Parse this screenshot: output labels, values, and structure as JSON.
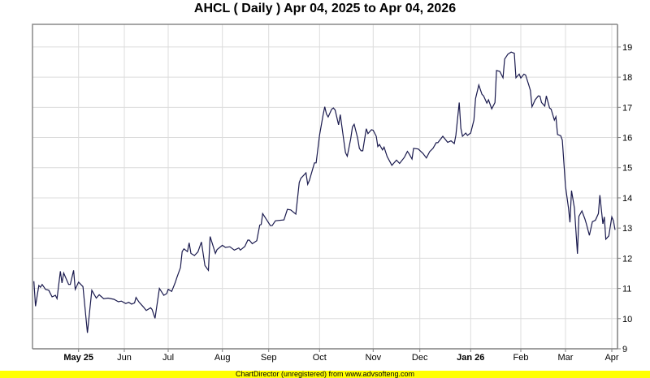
{
  "chart_data": {
    "type": "line",
    "title": "AHCL ( Daily ) Apr 04, 2025 to Apr 04, 2026",
    "xlabel": "",
    "ylabel": "",
    "ylim": [
      9,
      19.75
    ],
    "yticks": [
      9,
      10,
      11,
      12,
      13,
      14,
      15,
      16,
      17,
      18,
      19
    ],
    "y_axis_side": "right",
    "grid": true,
    "line_color": "#1a1a4e",
    "xticks": [
      {
        "date": "2025-05-01",
        "label": "May 25",
        "bold": true
      },
      {
        "date": "2025-06-01",
        "label": "Jun",
        "bold": false
      },
      {
        "date": "2025-07-01",
        "label": "Jul",
        "bold": false
      },
      {
        "date": "2025-08-01",
        "label": "Aug",
        "bold": false
      },
      {
        "date": "2025-09-01",
        "label": "Sep",
        "bold": false
      },
      {
        "date": "2025-10-01",
        "label": "Oct",
        "bold": false
      },
      {
        "date": "2025-11-01",
        "label": "Nov",
        "bold": false
      },
      {
        "date": "2025-12-01",
        "label": "Dec",
        "bold": false
      },
      {
        "date": "2026-01-01",
        "label": "Jan 26",
        "bold": true
      },
      {
        "date": "2026-02-01",
        "label": "Feb",
        "bold": false
      },
      {
        "date": "2026-03-01",
        "label": "Mar",
        "bold": false
      },
      {
        "date": "2026-04-01",
        "label": "Apr",
        "bold": false
      }
    ],
    "points": [
      [
        "2025-04-04",
        11.24
      ],
      [
        "2025-04-05",
        10.41
      ],
      [
        "2025-04-07",
        11.1
      ],
      [
        "2025-04-08",
        11.04
      ],
      [
        "2025-04-09",
        11.13
      ],
      [
        "2025-04-11",
        10.97
      ],
      [
        "2025-04-13",
        10.94
      ],
      [
        "2025-04-15",
        10.72
      ],
      [
        "2025-04-17",
        10.77
      ],
      [
        "2025-04-18",
        10.66
      ],
      [
        "2025-04-20",
        11.57
      ],
      [
        "2025-04-21",
        11.18
      ],
      [
        "2025-04-22",
        11.51
      ],
      [
        "2025-04-25",
        11.13
      ],
      [
        "2025-04-26",
        11.13
      ],
      [
        "2025-04-28",
        11.6
      ],
      [
        "2025-04-29",
        10.97
      ],
      [
        "2025-05-01",
        11.21
      ],
      [
        "2025-05-04",
        11.06
      ],
      [
        "2025-05-07",
        9.53
      ],
      [
        "2025-05-10",
        10.94
      ],
      [
        "2025-05-13",
        10.68
      ],
      [
        "2025-05-15",
        10.79
      ],
      [
        "2025-05-18",
        10.66
      ],
      [
        "2025-05-21",
        10.68
      ],
      [
        "2025-05-25",
        10.64
      ],
      [
        "2025-05-28",
        10.56
      ],
      [
        "2025-05-30",
        10.58
      ],
      [
        "2025-06-02",
        10.5
      ],
      [
        "2025-06-04",
        10.54
      ],
      [
        "2025-06-06",
        10.48
      ],
      [
        "2025-06-08",
        10.52
      ],
      [
        "2025-06-09",
        10.7
      ],
      [
        "2025-06-11",
        10.55
      ],
      [
        "2025-06-14",
        10.39
      ],
      [
        "2025-06-16",
        10.27
      ],
      [
        "2025-06-19",
        10.36
      ],
      [
        "2025-06-20",
        10.3
      ],
      [
        "2025-06-22",
        10.01
      ],
      [
        "2025-06-25",
        11.0
      ],
      [
        "2025-06-28",
        10.77
      ],
      [
        "2025-06-30",
        10.83
      ],
      [
        "2025-07-01",
        10.97
      ],
      [
        "2025-07-03",
        10.9
      ],
      [
        "2025-07-05",
        11.19
      ],
      [
        "2025-07-06",
        11.37
      ],
      [
        "2025-07-08",
        11.69
      ],
      [
        "2025-07-09",
        12.22
      ],
      [
        "2025-07-10",
        12.31
      ],
      [
        "2025-07-12",
        12.22
      ],
      [
        "2025-07-13",
        12.51
      ],
      [
        "2025-07-14",
        12.16
      ],
      [
        "2025-07-16",
        12.09
      ],
      [
        "2025-07-18",
        12.21
      ],
      [
        "2025-07-20",
        12.54
      ],
      [
        "2025-07-22",
        11.76
      ],
      [
        "2025-07-24",
        11.6
      ],
      [
        "2025-07-25",
        12.72
      ],
      [
        "2025-07-28",
        12.16
      ],
      [
        "2025-07-29",
        12.29
      ],
      [
        "2025-08-01",
        12.43
      ],
      [
        "2025-08-03",
        12.36
      ],
      [
        "2025-08-06",
        12.38
      ],
      [
        "2025-08-09",
        12.27
      ],
      [
        "2025-08-12",
        12.34
      ],
      [
        "2025-08-13",
        12.27
      ],
      [
        "2025-08-16",
        12.39
      ],
      [
        "2025-08-18",
        12.6
      ],
      [
        "2025-08-19",
        12.6
      ],
      [
        "2025-08-21",
        12.48
      ],
      [
        "2025-08-24",
        12.58
      ],
      [
        "2025-08-26",
        13.1
      ],
      [
        "2025-08-27",
        13.12
      ],
      [
        "2025-08-28",
        13.48
      ],
      [
        "2025-09-02",
        13.08
      ],
      [
        "2025-09-03",
        13.08
      ],
      [
        "2025-09-05",
        13.24
      ],
      [
        "2025-09-10",
        13.27
      ],
      [
        "2025-09-12",
        13.62
      ],
      [
        "2025-09-14",
        13.6
      ],
      [
        "2025-09-17",
        13.46
      ],
      [
        "2025-09-19",
        14.51
      ],
      [
        "2025-09-20",
        14.65
      ],
      [
        "2025-09-23",
        14.83
      ],
      [
        "2025-09-24",
        14.45
      ],
      [
        "2025-09-25",
        14.58
      ],
      [
        "2025-09-28",
        15.16
      ],
      [
        "2025-09-29",
        15.16
      ],
      [
        "2025-10-01",
        16.08
      ],
      [
        "2025-10-03",
        16.74
      ],
      [
        "2025-10-04",
        17.02
      ],
      [
        "2025-10-05",
        16.78
      ],
      [
        "2025-10-06",
        16.68
      ],
      [
        "2025-10-08",
        16.94
      ],
      [
        "2025-10-09",
        16.98
      ],
      [
        "2025-10-10",
        16.91
      ],
      [
        "2025-10-12",
        16.42
      ],
      [
        "2025-10-13",
        16.76
      ],
      [
        "2025-10-15",
        15.91
      ],
      [
        "2025-10-16",
        15.5
      ],
      [
        "2025-10-17",
        15.38
      ],
      [
        "2025-10-19",
        15.95
      ],
      [
        "2025-10-20",
        16.35
      ],
      [
        "2025-10-21",
        16.44
      ],
      [
        "2025-10-23",
        15.99
      ],
      [
        "2025-10-24",
        15.64
      ],
      [
        "2025-10-25",
        15.56
      ],
      [
        "2025-10-26",
        15.56
      ],
      [
        "2025-10-28",
        16.29
      ],
      [
        "2025-10-29",
        16.13
      ],
      [
        "2025-10-31",
        16.26
      ],
      [
        "2025-11-01",
        16.24
      ],
      [
        "2025-11-03",
        16.04
      ],
      [
        "2025-11-04",
        15.7
      ],
      [
        "2025-11-05",
        15.77
      ],
      [
        "2025-11-07",
        15.59
      ],
      [
        "2025-11-08",
        15.68
      ],
      [
        "2025-11-10",
        15.37
      ],
      [
        "2025-11-13",
        15.08
      ],
      [
        "2025-11-16",
        15.25
      ],
      [
        "2025-11-18",
        15.14
      ],
      [
        "2025-11-21",
        15.34
      ],
      [
        "2025-11-23",
        15.54
      ],
      [
        "2025-11-24",
        15.47
      ],
      [
        "2025-11-26",
        15.29
      ],
      [
        "2025-11-27",
        15.64
      ],
      [
        "2025-11-30",
        15.62
      ],
      [
        "2025-12-03",
        15.47
      ],
      [
        "2025-12-05",
        15.32
      ],
      [
        "2025-12-07",
        15.53
      ],
      [
        "2025-12-09",
        15.64
      ],
      [
        "2025-12-11",
        15.83
      ],
      [
        "2025-12-12",
        15.83
      ],
      [
        "2025-12-15",
        16.04
      ],
      [
        "2025-12-18",
        15.84
      ],
      [
        "2025-12-20",
        15.89
      ],
      [
        "2025-12-22",
        15.8
      ],
      [
        "2025-12-23",
        16.08
      ],
      [
        "2025-12-25",
        17.16
      ],
      [
        "2025-12-26",
        16.31
      ],
      [
        "2025-12-27",
        16.04
      ],
      [
        "2025-12-29",
        16.15
      ],
      [
        "2025-12-30",
        16.07
      ],
      [
        "2026-01-01",
        16.15
      ],
      [
        "2026-01-03",
        16.58
      ],
      [
        "2026-01-04",
        17.29
      ],
      [
        "2026-01-06",
        17.74
      ],
      [
        "2026-01-08",
        17.43
      ],
      [
        "2026-01-09",
        17.38
      ],
      [
        "2026-01-11",
        17.14
      ],
      [
        "2026-01-12",
        17.25
      ],
      [
        "2026-01-14",
        16.95
      ],
      [
        "2026-01-16",
        17.16
      ],
      [
        "2026-01-17",
        18.22
      ],
      [
        "2026-01-19",
        18.19
      ],
      [
        "2026-01-21",
        17.98
      ],
      [
        "2026-01-22",
        18.6
      ],
      [
        "2026-01-24",
        18.76
      ],
      [
        "2026-01-26",
        18.83
      ],
      [
        "2026-01-28",
        18.79
      ],
      [
        "2026-01-29",
        17.98
      ],
      [
        "2026-01-31",
        18.1
      ],
      [
        "2026-02-01",
        17.97
      ],
      [
        "2026-02-03",
        18.1
      ],
      [
        "2026-02-04",
        18.07
      ],
      [
        "2026-02-06",
        17.74
      ],
      [
        "2026-02-07",
        17.56
      ],
      [
        "2026-02-08",
        17.02
      ],
      [
        "2026-02-10",
        17.25
      ],
      [
        "2026-02-12",
        17.38
      ],
      [
        "2026-02-13",
        17.37
      ],
      [
        "2026-02-14",
        17.16
      ],
      [
        "2026-02-16",
        17.04
      ],
      [
        "2026-02-17",
        17.38
      ],
      [
        "2026-02-19",
        16.98
      ],
      [
        "2026-02-20",
        16.94
      ],
      [
        "2026-02-22",
        16.58
      ],
      [
        "2026-02-23",
        16.69
      ],
      [
        "2026-02-24",
        16.1
      ],
      [
        "2026-02-26",
        16.06
      ],
      [
        "2026-02-27",
        15.91
      ],
      [
        "2026-03-01",
        14.38
      ],
      [
        "2026-03-03",
        13.66
      ],
      [
        "2026-03-04",
        13.19
      ],
      [
        "2026-03-05",
        14.24
      ],
      [
        "2026-03-07",
        13.66
      ],
      [
        "2026-03-09",
        12.15
      ],
      [
        "2026-03-10",
        13.39
      ],
      [
        "2026-03-12",
        13.57
      ],
      [
        "2026-03-14",
        13.3
      ],
      [
        "2026-03-15",
        13.14
      ],
      [
        "2026-03-17",
        12.76
      ],
      [
        "2026-03-18",
        12.99
      ],
      [
        "2026-03-19",
        13.21
      ],
      [
        "2026-03-21",
        13.26
      ],
      [
        "2026-03-23",
        13.48
      ],
      [
        "2026-03-24",
        14.09
      ],
      [
        "2026-03-26",
        13.14
      ],
      [
        "2026-03-27",
        13.37
      ],
      [
        "2026-03-28",
        12.63
      ],
      [
        "2026-03-30",
        12.74
      ],
      [
        "2026-04-01",
        13.37
      ],
      [
        "2026-04-02",
        13.24
      ],
      [
        "2026-04-03",
        12.94
      ]
    ]
  },
  "footer": "ChartDirector (unregistered) from www.advsofteng.com"
}
